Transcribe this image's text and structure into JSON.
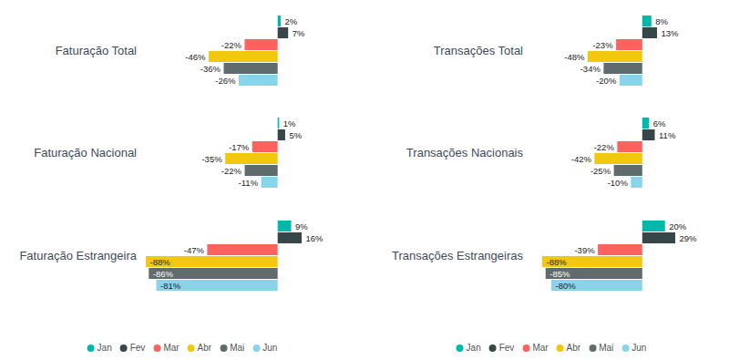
{
  "chart_data": [
    {
      "type": "bar",
      "orientation": "horizontal",
      "title": "Faturação Total",
      "categories": [
        "Jan",
        "Fev",
        "Mar",
        "Abr",
        "Mai",
        "Jun"
      ],
      "values": [
        2,
        7,
        -22,
        -46,
        -36,
        -26
      ],
      "value_labels": [
        "2%",
        "7%",
        "-22%",
        "-46%",
        "-36%",
        "-26%"
      ],
      "colors": [
        "#01B8AA",
        "#374649",
        "#FD625E",
        "#F2C80F",
        "#5F6B6D",
        "#8AD4EB"
      ],
      "data_labels": true,
      "tick_labels": false,
      "grid": false
    },
    {
      "type": "bar",
      "orientation": "horizontal",
      "title": "Faturação Nacional",
      "categories": [
        "Jan",
        "Fev",
        "Mar",
        "Abr",
        "Mai",
        "Jun"
      ],
      "values": [
        1,
        5,
        -17,
        -35,
        -22,
        -11
      ],
      "value_labels": [
        "1%",
        "5%",
        "-17%",
        "-35%",
        "-22%",
        "-11%"
      ],
      "colors": [
        "#01B8AA",
        "#374649",
        "#FD625E",
        "#F2C80F",
        "#5F6B6D",
        "#8AD4EB"
      ],
      "data_labels": true,
      "tick_labels": false,
      "grid": false
    },
    {
      "type": "bar",
      "orientation": "horizontal",
      "title": "Faturação Estrangeira",
      "categories": [
        "Jan",
        "Fev",
        "Mar",
        "Abr",
        "Mai",
        "Jun"
      ],
      "values": [
        9,
        16,
        -47,
        -88,
        -86,
        -81
      ],
      "value_labels": [
        "9%",
        "16%",
        "-47%",
        "-88%",
        "-86%",
        "-81%"
      ],
      "colors": [
        "#01B8AA",
        "#374649",
        "#FD625E",
        "#F2C80F",
        "#5F6B6D",
        "#8AD4EB"
      ],
      "data_labels": true,
      "tick_labels": false,
      "grid": false,
      "legend": "bottom"
    },
    {
      "type": "bar",
      "orientation": "horizontal",
      "title": "Transações Total",
      "categories": [
        "Jan",
        "Fev",
        "Mar",
        "Abr",
        "Mai",
        "Jun"
      ],
      "values": [
        8,
        13,
        -23,
        -48,
        -34,
        -20
      ],
      "value_labels": [
        "8%",
        "13%",
        "-23%",
        "-48%",
        "-34%",
        "-20%"
      ],
      "colors": [
        "#01B8AA",
        "#374649",
        "#FD625E",
        "#F2C80F",
        "#5F6B6D",
        "#8AD4EB"
      ],
      "data_labels": true,
      "tick_labels": false,
      "grid": false
    },
    {
      "type": "bar",
      "orientation": "horizontal",
      "title": "Transações Nacionais",
      "categories": [
        "Jan",
        "Fev",
        "Mar",
        "Abr",
        "Mai",
        "Jun"
      ],
      "values": [
        6,
        11,
        -22,
        -42,
        -25,
        -10
      ],
      "value_labels": [
        "6%",
        "11%",
        "-22%",
        "-42%",
        "-25%",
        "-10%"
      ],
      "colors": [
        "#01B8AA",
        "#374649",
        "#FD625E",
        "#F2C80F",
        "#5F6B6D",
        "#8AD4EB"
      ],
      "data_labels": true,
      "tick_labels": false,
      "grid": false
    },
    {
      "type": "bar",
      "orientation": "horizontal",
      "title": "Transações Estrangeiras",
      "categories": [
        "Jan",
        "Fev",
        "Mar",
        "Abr",
        "Mai",
        "Jun"
      ],
      "values": [
        20,
        29,
        -39,
        -88,
        -85,
        -80
      ],
      "value_labels": [
        "20%",
        "29%",
        "-39%",
        "-88%",
        "-85%",
        "-80%"
      ],
      "colors": [
        "#01B8AA",
        "#374649",
        "#FD625E",
        "#F2C80F",
        "#5F6B6D",
        "#8AD4EB"
      ],
      "data_labels": true,
      "tick_labels": false,
      "grid": false,
      "legend": "bottom"
    }
  ]
}
